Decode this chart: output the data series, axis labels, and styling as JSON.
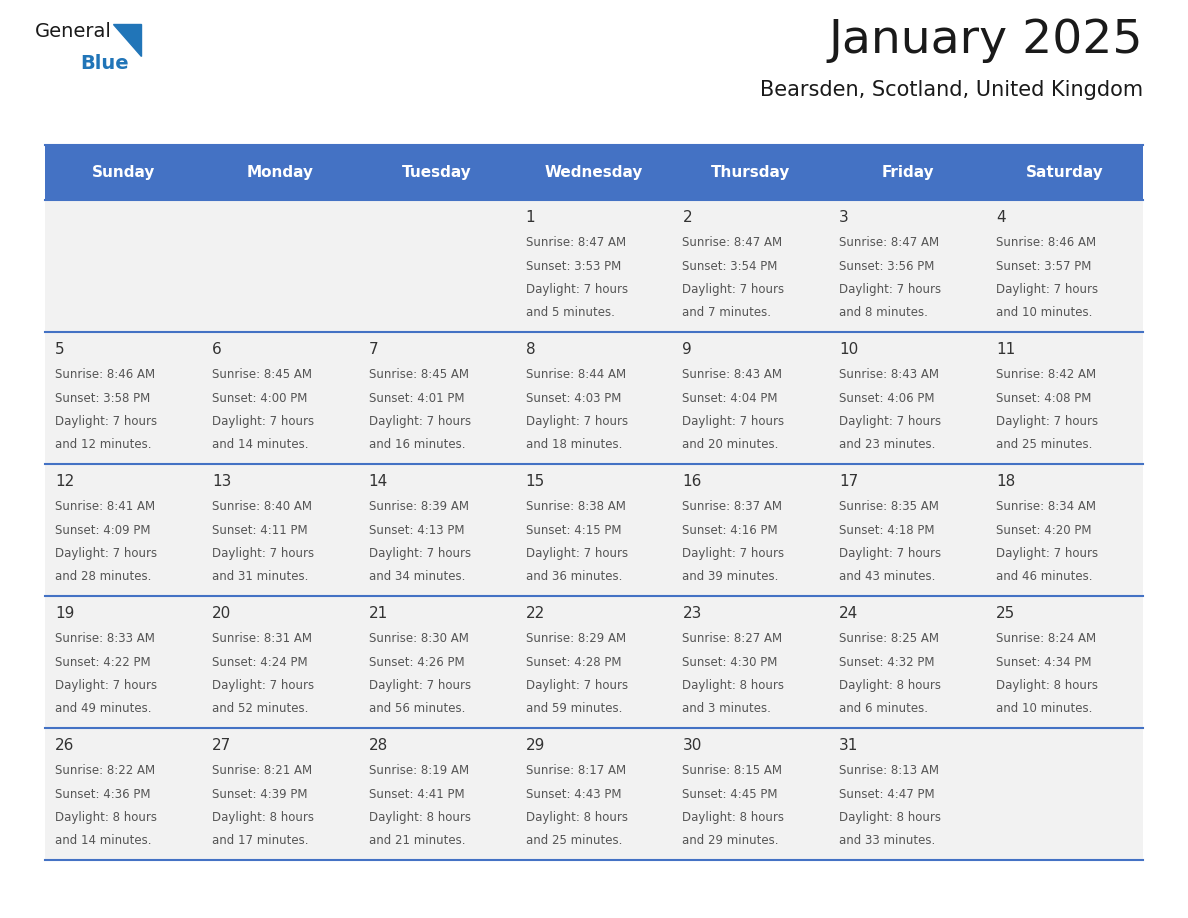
{
  "title": "January 2025",
  "subtitle": "Bearsden, Scotland, United Kingdom",
  "days_of_week": [
    "Sunday",
    "Monday",
    "Tuesday",
    "Wednesday",
    "Thursday",
    "Friday",
    "Saturday"
  ],
  "header_bg": "#4472C4",
  "header_text": "#FFFFFF",
  "cell_bg": "#F2F2F2",
  "grid_line_color": "#4472C4",
  "day_number_color": "#333333",
  "cell_text_color": "#555555",
  "title_color": "#1a1a1a",
  "subtitle_color": "#1a1a1a",
  "logo_general_color": "#1a1a1a",
  "logo_blue_color": "#2175B8",
  "logo_triangle_color": "#2175B8",
  "calendar_data": [
    [
      null,
      null,
      null,
      {
        "day": 1,
        "sunrise": "8:47 AM",
        "sunset": "3:53 PM",
        "daylight_line1": "Daylight: 7 hours",
        "daylight_line2": "and 5 minutes."
      },
      {
        "day": 2,
        "sunrise": "8:47 AM",
        "sunset": "3:54 PM",
        "daylight_line1": "Daylight: 7 hours",
        "daylight_line2": "and 7 minutes."
      },
      {
        "day": 3,
        "sunrise": "8:47 AM",
        "sunset": "3:56 PM",
        "daylight_line1": "Daylight: 7 hours",
        "daylight_line2": "and 8 minutes."
      },
      {
        "day": 4,
        "sunrise": "8:46 AM",
        "sunset": "3:57 PM",
        "daylight_line1": "Daylight: 7 hours",
        "daylight_line2": "and 10 minutes."
      }
    ],
    [
      {
        "day": 5,
        "sunrise": "8:46 AM",
        "sunset": "3:58 PM",
        "daylight_line1": "Daylight: 7 hours",
        "daylight_line2": "and 12 minutes."
      },
      {
        "day": 6,
        "sunrise": "8:45 AM",
        "sunset": "4:00 PM",
        "daylight_line1": "Daylight: 7 hours",
        "daylight_line2": "and 14 minutes."
      },
      {
        "day": 7,
        "sunrise": "8:45 AM",
        "sunset": "4:01 PM",
        "daylight_line1": "Daylight: 7 hours",
        "daylight_line2": "and 16 minutes."
      },
      {
        "day": 8,
        "sunrise": "8:44 AM",
        "sunset": "4:03 PM",
        "daylight_line1": "Daylight: 7 hours",
        "daylight_line2": "and 18 minutes."
      },
      {
        "day": 9,
        "sunrise": "8:43 AM",
        "sunset": "4:04 PM",
        "daylight_line1": "Daylight: 7 hours",
        "daylight_line2": "and 20 minutes."
      },
      {
        "day": 10,
        "sunrise": "8:43 AM",
        "sunset": "4:06 PM",
        "daylight_line1": "Daylight: 7 hours",
        "daylight_line2": "and 23 minutes."
      },
      {
        "day": 11,
        "sunrise": "8:42 AM",
        "sunset": "4:08 PM",
        "daylight_line1": "Daylight: 7 hours",
        "daylight_line2": "and 25 minutes."
      }
    ],
    [
      {
        "day": 12,
        "sunrise": "8:41 AM",
        "sunset": "4:09 PM",
        "daylight_line1": "Daylight: 7 hours",
        "daylight_line2": "and 28 minutes."
      },
      {
        "day": 13,
        "sunrise": "8:40 AM",
        "sunset": "4:11 PM",
        "daylight_line1": "Daylight: 7 hours",
        "daylight_line2": "and 31 minutes."
      },
      {
        "day": 14,
        "sunrise": "8:39 AM",
        "sunset": "4:13 PM",
        "daylight_line1": "Daylight: 7 hours",
        "daylight_line2": "and 34 minutes."
      },
      {
        "day": 15,
        "sunrise": "8:38 AM",
        "sunset": "4:15 PM",
        "daylight_line1": "Daylight: 7 hours",
        "daylight_line2": "and 36 minutes."
      },
      {
        "day": 16,
        "sunrise": "8:37 AM",
        "sunset": "4:16 PM",
        "daylight_line1": "Daylight: 7 hours",
        "daylight_line2": "and 39 minutes."
      },
      {
        "day": 17,
        "sunrise": "8:35 AM",
        "sunset": "4:18 PM",
        "daylight_line1": "Daylight: 7 hours",
        "daylight_line2": "and 43 minutes."
      },
      {
        "day": 18,
        "sunrise": "8:34 AM",
        "sunset": "4:20 PM",
        "daylight_line1": "Daylight: 7 hours",
        "daylight_line2": "and 46 minutes."
      }
    ],
    [
      {
        "day": 19,
        "sunrise": "8:33 AM",
        "sunset": "4:22 PM",
        "daylight_line1": "Daylight: 7 hours",
        "daylight_line2": "and 49 minutes."
      },
      {
        "day": 20,
        "sunrise": "8:31 AM",
        "sunset": "4:24 PM",
        "daylight_line1": "Daylight: 7 hours",
        "daylight_line2": "and 52 minutes."
      },
      {
        "day": 21,
        "sunrise": "8:30 AM",
        "sunset": "4:26 PM",
        "daylight_line1": "Daylight: 7 hours",
        "daylight_line2": "and 56 minutes."
      },
      {
        "day": 22,
        "sunrise": "8:29 AM",
        "sunset": "4:28 PM",
        "daylight_line1": "Daylight: 7 hours",
        "daylight_line2": "and 59 minutes."
      },
      {
        "day": 23,
        "sunrise": "8:27 AM",
        "sunset": "4:30 PM",
        "daylight_line1": "Daylight: 8 hours",
        "daylight_line2": "and 3 minutes."
      },
      {
        "day": 24,
        "sunrise": "8:25 AM",
        "sunset": "4:32 PM",
        "daylight_line1": "Daylight: 8 hours",
        "daylight_line2": "and 6 minutes."
      },
      {
        "day": 25,
        "sunrise": "8:24 AM",
        "sunset": "4:34 PM",
        "daylight_line1": "Daylight: 8 hours",
        "daylight_line2": "and 10 minutes."
      }
    ],
    [
      {
        "day": 26,
        "sunrise": "8:22 AM",
        "sunset": "4:36 PM",
        "daylight_line1": "Daylight: 8 hours",
        "daylight_line2": "and 14 minutes."
      },
      {
        "day": 27,
        "sunrise": "8:21 AM",
        "sunset": "4:39 PM",
        "daylight_line1": "Daylight: 8 hours",
        "daylight_line2": "and 17 minutes."
      },
      {
        "day": 28,
        "sunrise": "8:19 AM",
        "sunset": "4:41 PM",
        "daylight_line1": "Daylight: 8 hours",
        "daylight_line2": "and 21 minutes."
      },
      {
        "day": 29,
        "sunrise": "8:17 AM",
        "sunset": "4:43 PM",
        "daylight_line1": "Daylight: 8 hours",
        "daylight_line2": "and 25 minutes."
      },
      {
        "day": 30,
        "sunrise": "8:15 AM",
        "sunset": "4:45 PM",
        "daylight_line1": "Daylight: 8 hours",
        "daylight_line2": "and 29 minutes."
      },
      {
        "day": 31,
        "sunrise": "8:13 AM",
        "sunset": "4:47 PM",
        "daylight_line1": "Daylight: 8 hours",
        "daylight_line2": "and 33 minutes."
      },
      null
    ]
  ]
}
